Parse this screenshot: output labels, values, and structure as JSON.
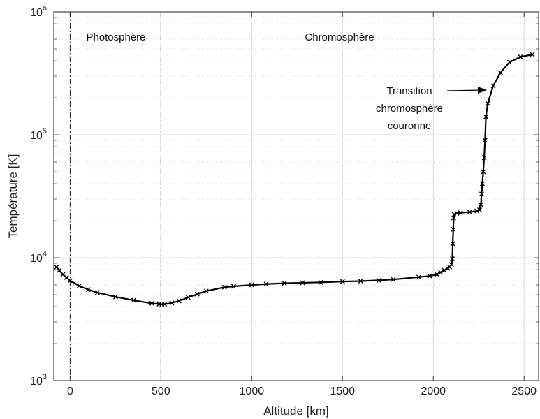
{
  "chart_data": {
    "type": "line",
    "xlabel": "Altitude [km]",
    "ylabel": "Température [K]",
    "yscale": "log",
    "xlim": [
      -90,
      2580
    ],
    "ylim": [
      1000,
      1000000
    ],
    "grid": true,
    "x_ticks": [
      0,
      500,
      1000,
      1500,
      2000,
      2500
    ],
    "y_ticks": [
      {
        "base": "10",
        "exp": "3",
        "value": 1000
      },
      {
        "base": "10",
        "exp": "4",
        "value": 10000
      },
      {
        "base": "10",
        "exp": "5",
        "value": 100000
      },
      {
        "base": "10",
        "exp": "6",
        "value": 1000000
      }
    ],
    "regions": [
      {
        "label": "Photosphère",
        "boundary_start": 0,
        "boundary_end": 500
      },
      {
        "label": "Chromosphère"
      }
    ],
    "annotation": {
      "lines": [
        "Transition",
        "chromosphère",
        "couronne"
      ],
      "arrow_to": {
        "x": 2260,
        "y": 250000
      }
    },
    "series": [
      {
        "marker": "x",
        "color": "#000000",
        "points": [
          [
            -75,
            8400
          ],
          [
            -60,
            7900
          ],
          [
            -40,
            7300
          ],
          [
            -20,
            6900
          ],
          [
            0,
            6500
          ],
          [
            50,
            5900
          ],
          [
            100,
            5500
          ],
          [
            150,
            5200
          ],
          [
            250,
            4800
          ],
          [
            350,
            4500
          ],
          [
            450,
            4250
          ],
          [
            490,
            4190
          ],
          [
            505,
            4170
          ],
          [
            520,
            4180
          ],
          [
            560,
            4280
          ],
          [
            600,
            4450
          ],
          [
            650,
            4750
          ],
          [
            700,
            5050
          ],
          [
            750,
            5350
          ],
          [
            850,
            5750
          ],
          [
            900,
            5850
          ],
          [
            1000,
            6000
          ],
          [
            1080,
            6100
          ],
          [
            1180,
            6200
          ],
          [
            1280,
            6250
          ],
          [
            1380,
            6300
          ],
          [
            1500,
            6400
          ],
          [
            1600,
            6450
          ],
          [
            1700,
            6550
          ],
          [
            1780,
            6650
          ],
          [
            1920,
            6950
          ],
          [
            1980,
            7100
          ],
          [
            2020,
            7300
          ],
          [
            2040,
            7600
          ],
          [
            2060,
            7900
          ],
          [
            2080,
            8200
          ],
          [
            2090,
            8400
          ],
          [
            2100,
            8800
          ],
          [
            2105,
            9800
          ],
          [
            2107,
            13000
          ],
          [
            2110,
            17000
          ],
          [
            2112,
            21000
          ],
          [
            2115,
            22500
          ],
          [
            2130,
            23000
          ],
          [
            2150,
            23200
          ],
          [
            2200,
            23500
          ],
          [
            2240,
            24000
          ],
          [
            2255,
            24500
          ],
          [
            2262,
            27000
          ],
          [
            2266,
            33000
          ],
          [
            2270,
            40000
          ],
          [
            2275,
            50000
          ],
          [
            2280,
            65000
          ],
          [
            2285,
            90000
          ],
          [
            2290,
            140000
          ],
          [
            2300,
            180000
          ],
          [
            2330,
            250000
          ],
          [
            2370,
            320000
          ],
          [
            2420,
            390000
          ],
          [
            2480,
            430000
          ],
          [
            2545,
            450000
          ]
        ]
      }
    ]
  }
}
